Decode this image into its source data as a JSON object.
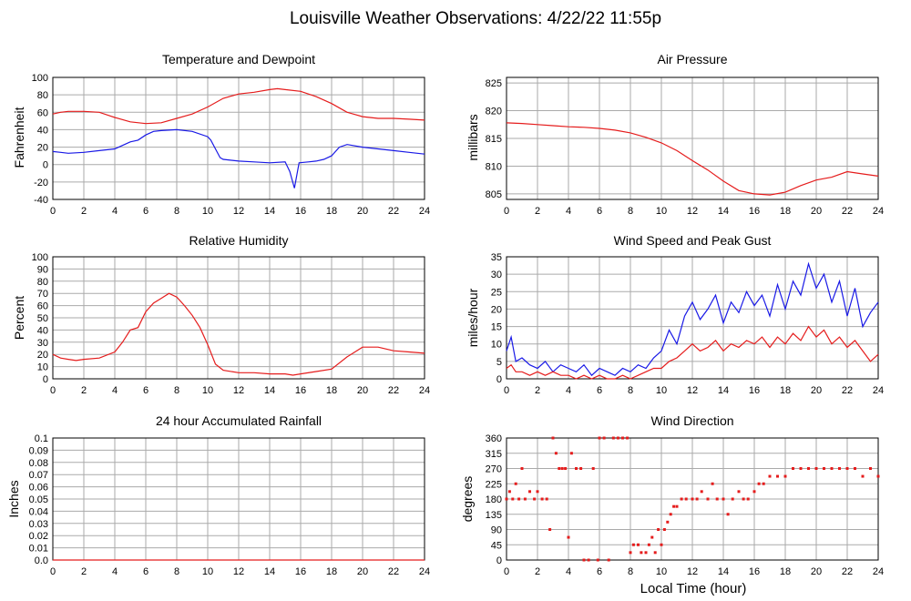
{
  "title": "Louisville Weather Observations: 4/22/22 11:55p",
  "xlabel": "Local Time (hour)",
  "colors": {
    "red": "#e51c1c",
    "blue": "#1919e6",
    "grid": "#aaaaaa"
  },
  "chart_data": [
    {
      "type": "line",
      "title": "Temperature and Dewpoint",
      "ylabel": "Fahrenheit",
      "xlim": [
        0,
        24
      ],
      "ylim": [
        -40,
        100
      ],
      "xticks": [
        0,
        2,
        4,
        6,
        8,
        10,
        12,
        14,
        16,
        18,
        20,
        22,
        24
      ],
      "yticks": [
        -40,
        -20,
        0,
        20,
        40,
        60,
        80,
        100
      ],
      "grid": true,
      "series": [
        {
          "color": "#e51c1c",
          "x": [
            0,
            0.5,
            1,
            2,
            3,
            4,
            5,
            6,
            7,
            8,
            9,
            10,
            11,
            12,
            13,
            14,
            14.5,
            15,
            16,
            17,
            18,
            19,
            20,
            21,
            22,
            23,
            24
          ],
          "y": [
            58,
            60,
            61,
            61,
            60,
            54,
            49,
            47,
            48,
            53,
            58,
            66,
            76,
            81,
            83,
            86,
            87,
            86,
            84,
            78,
            70,
            60,
            55,
            53,
            53,
            52,
            51
          ]
        },
        {
          "color": "#1919e6",
          "x": [
            0,
            0.5,
            1,
            2,
            3,
            4,
            5,
            5.5,
            6,
            6.5,
            7,
            8,
            9,
            10,
            10.2,
            10.5,
            10.8,
            11,
            12,
            13,
            14,
            15,
            15.3,
            15.6,
            15.9,
            16.5,
            17,
            17.5,
            18,
            18.5,
            19,
            20,
            21,
            22,
            23,
            24
          ],
          "y": [
            15,
            14,
            13,
            14,
            16,
            18,
            26,
            28,
            34,
            38,
            39,
            40,
            38,
            32,
            28,
            18,
            8,
            6,
            4,
            3,
            2,
            3,
            -8,
            -27,
            2,
            3,
            4,
            6,
            10,
            20,
            23,
            20,
            18,
            16,
            14,
            12
          ]
        }
      ]
    },
    {
      "type": "line",
      "title": "Air Pressure",
      "ylabel": "millibars",
      "xlim": [
        0,
        24
      ],
      "ylim": [
        804,
        826
      ],
      "xticks": [
        0,
        2,
        4,
        6,
        8,
        10,
        12,
        14,
        16,
        18,
        20,
        22,
        24
      ],
      "yticks": [
        805,
        810,
        815,
        820,
        825
      ],
      "grid": true,
      "series": [
        {
          "color": "#e51c1c",
          "x": [
            0,
            1,
            2,
            3,
            4,
            5,
            6,
            7,
            8,
            9,
            10,
            11,
            12,
            13,
            14,
            15,
            16,
            17,
            18,
            19,
            20,
            21,
            22,
            23,
            24
          ],
          "y": [
            817.8,
            817.7,
            817.5,
            817.3,
            817.1,
            817.0,
            816.8,
            816.5,
            816.0,
            815.2,
            814.2,
            812.8,
            811.0,
            809.3,
            807.3,
            805.6,
            805.0,
            804.8,
            805.3,
            806.5,
            807.5,
            808.0,
            809.0,
            808.6,
            808.2
          ]
        }
      ]
    },
    {
      "type": "line",
      "title": "Relative Humidity",
      "ylabel": "Percent",
      "xlim": [
        0,
        24
      ],
      "ylim": [
        0,
        100
      ],
      "xticks": [
        0,
        2,
        4,
        6,
        8,
        10,
        12,
        14,
        16,
        18,
        20,
        22,
        24
      ],
      "yticks": [
        0,
        10,
        20,
        30,
        40,
        50,
        60,
        70,
        80,
        90,
        100
      ],
      "grid": true,
      "series": [
        {
          "color": "#e51c1c",
          "x": [
            0,
            0.5,
            1,
            1.5,
            2,
            3,
            4,
            4.5,
            5,
            5.5,
            6,
            6.5,
            7,
            7.5,
            8,
            8.5,
            9,
            9.5,
            10,
            10.5,
            11,
            12,
            13,
            14,
            15,
            15.5,
            16,
            17,
            18,
            19,
            20,
            21,
            22,
            23,
            24
          ],
          "y": [
            20,
            17,
            16,
            15,
            16,
            17,
            22,
            30,
            40,
            42,
            55,
            62,
            66,
            70,
            67,
            60,
            52,
            42,
            28,
            12,
            7,
            5,
            5,
            4,
            4,
            3,
            4,
            6,
            8,
            18,
            26,
            26,
            23,
            22,
            21
          ]
        }
      ]
    },
    {
      "type": "line",
      "title": "Wind Speed and Peak Gust",
      "ylabel": "miles/hour",
      "xlim": [
        0,
        24
      ],
      "ylim": [
        0,
        35
      ],
      "xticks": [
        0,
        2,
        4,
        6,
        8,
        10,
        12,
        14,
        16,
        18,
        20,
        22,
        24
      ],
      "yticks": [
        0,
        5,
        10,
        15,
        20,
        25,
        30,
        35
      ],
      "grid": true,
      "series": [
        {
          "color": "#1919e6",
          "x": [
            0,
            0.3,
            0.6,
            1,
            1.5,
            2,
            2.5,
            3,
            3.5,
            4,
            4.5,
            5,
            5.5,
            6,
            6.5,
            7,
            7.5,
            8,
            8.5,
            9,
            9.5,
            10,
            10.5,
            11,
            11.5,
            12,
            12.5,
            13,
            13.5,
            14,
            14.5,
            15,
            15.5,
            16,
            16.5,
            17,
            17.5,
            18,
            18.5,
            19,
            19.5,
            20,
            20.5,
            21,
            21.5,
            22,
            22.5,
            23,
            23.5,
            24
          ],
          "y": [
            8,
            12,
            5,
            6,
            4,
            3,
            5,
            2,
            4,
            3,
            2,
            4,
            1,
            3,
            2,
            1,
            3,
            2,
            4,
            3,
            6,
            8,
            14,
            10,
            18,
            22,
            17,
            20,
            24,
            16,
            22,
            19,
            25,
            21,
            24,
            18,
            27,
            20,
            28,
            24,
            33,
            26,
            30,
            22,
            28,
            18,
            26,
            15,
            19,
            22
          ]
        },
        {
          "color": "#e51c1c",
          "x": [
            0,
            0.3,
            0.6,
            1,
            1.5,
            2,
            2.5,
            3,
            3.5,
            4,
            4.5,
            5,
            5.5,
            6,
            6.5,
            7,
            7.5,
            8,
            8.5,
            9,
            9.5,
            10,
            10.5,
            11,
            11.5,
            12,
            12.5,
            13,
            13.5,
            14,
            14.5,
            15,
            15.5,
            16,
            16.5,
            17,
            17.5,
            18,
            18.5,
            19,
            19.5,
            20,
            20.5,
            21,
            21.5,
            22,
            22.5,
            23,
            23.5,
            24
          ],
          "y": [
            3,
            4,
            2,
            2,
            1,
            2,
            1,
            2,
            1,
            1,
            0,
            1,
            0,
            1,
            0,
            0,
            1,
            0,
            1,
            2,
            3,
            3,
            5,
            6,
            8,
            10,
            8,
            9,
            11,
            8,
            10,
            9,
            11,
            10,
            12,
            9,
            12,
            10,
            13,
            11,
            15,
            12,
            14,
            10,
            12,
            9,
            11,
            8,
            5,
            7
          ]
        }
      ]
    },
    {
      "type": "line",
      "title": "24 hour Accumulated Rainfall",
      "ylabel": "Inches",
      "xlim": [
        0,
        24
      ],
      "ylim": [
        0,
        0.1
      ],
      "xticks": [
        0,
        2,
        4,
        6,
        8,
        10,
        12,
        14,
        16,
        18,
        20,
        22,
        24
      ],
      "yticks": [
        0.0,
        0.01,
        0.02,
        0.03,
        0.04,
        0.05,
        0.06,
        0.07,
        0.08,
        0.09,
        0.1
      ],
      "ytick_labels": [
        "0.0",
        "0.01",
        "0.02",
        "0.03",
        "0.04",
        "0.05",
        "0.06",
        "0.07",
        "0.08",
        "0.09",
        "0.1"
      ],
      "grid": true,
      "series": [
        {
          "color": "#e51c1c",
          "x": [
            0,
            24
          ],
          "y": [
            0,
            0
          ]
        }
      ]
    },
    {
      "type": "scatter",
      "title": "Wind Direction",
      "ylabel": "degrees",
      "xlim": [
        0,
        24
      ],
      "ylim": [
        0,
        360
      ],
      "xticks": [
        0,
        2,
        4,
        6,
        8,
        10,
        12,
        14,
        16,
        18,
        20,
        22,
        24
      ],
      "yticks": [
        0,
        45,
        90,
        135,
        180,
        225,
        270,
        315,
        360
      ],
      "grid": true,
      "series": [
        {
          "color": "#e51c1c",
          "x": [
            0,
            0.2,
            0.4,
            0.6,
            0.8,
            1.0,
            1.2,
            1.5,
            1.8,
            2.0,
            2.3,
            2.6,
            2.8,
            3.0,
            3.2,
            3.4,
            3.6,
            3.8,
            4.0,
            4.2,
            4.5,
            4.8,
            5.0,
            5.3,
            5.6,
            5.9,
            6.0,
            6.3,
            6.6,
            6.9,
            7.2,
            7.5,
            7.8,
            8.0,
            8.2,
            8.5,
            8.7,
            9.0,
            9.2,
            9.4,
            9.6,
            9.8,
            10.0,
            10.2,
            10.4,
            10.6,
            10.8,
            11.0,
            11.3,
            11.6,
            12.0,
            12.3,
            12.6,
            13.0,
            13.3,
            13.6,
            14.0,
            14.3,
            14.6,
            15.0,
            15.3,
            15.6,
            16.0,
            16.3,
            16.6,
            17.0,
            17.5,
            18.0,
            18.5,
            19.0,
            19.5,
            20.0,
            20.5,
            21.0,
            21.5,
            22.0,
            22.5,
            23.0,
            23.5,
            24.0
          ],
          "y": [
            180,
            202,
            180,
            225,
            180,
            270,
            180,
            202,
            180,
            202,
            180,
            180,
            90,
            360,
            315,
            270,
            270,
            270,
            67,
            315,
            270,
            270,
            0,
            0,
            270,
            0,
            360,
            360,
            0,
            360,
            360,
            360,
            360,
            22,
            45,
            45,
            22,
            22,
            45,
            67,
            22,
            90,
            45,
            90,
            112,
            135,
            158,
            158,
            180,
            180,
            180,
            180,
            202,
            180,
            225,
            180,
            180,
            135,
            180,
            202,
            180,
            180,
            202,
            225,
            225,
            247,
            247,
            247,
            270,
            270,
            270,
            270,
            270,
            270,
            270,
            270,
            270,
            247,
            270,
            247
          ]
        }
      ]
    }
  ]
}
